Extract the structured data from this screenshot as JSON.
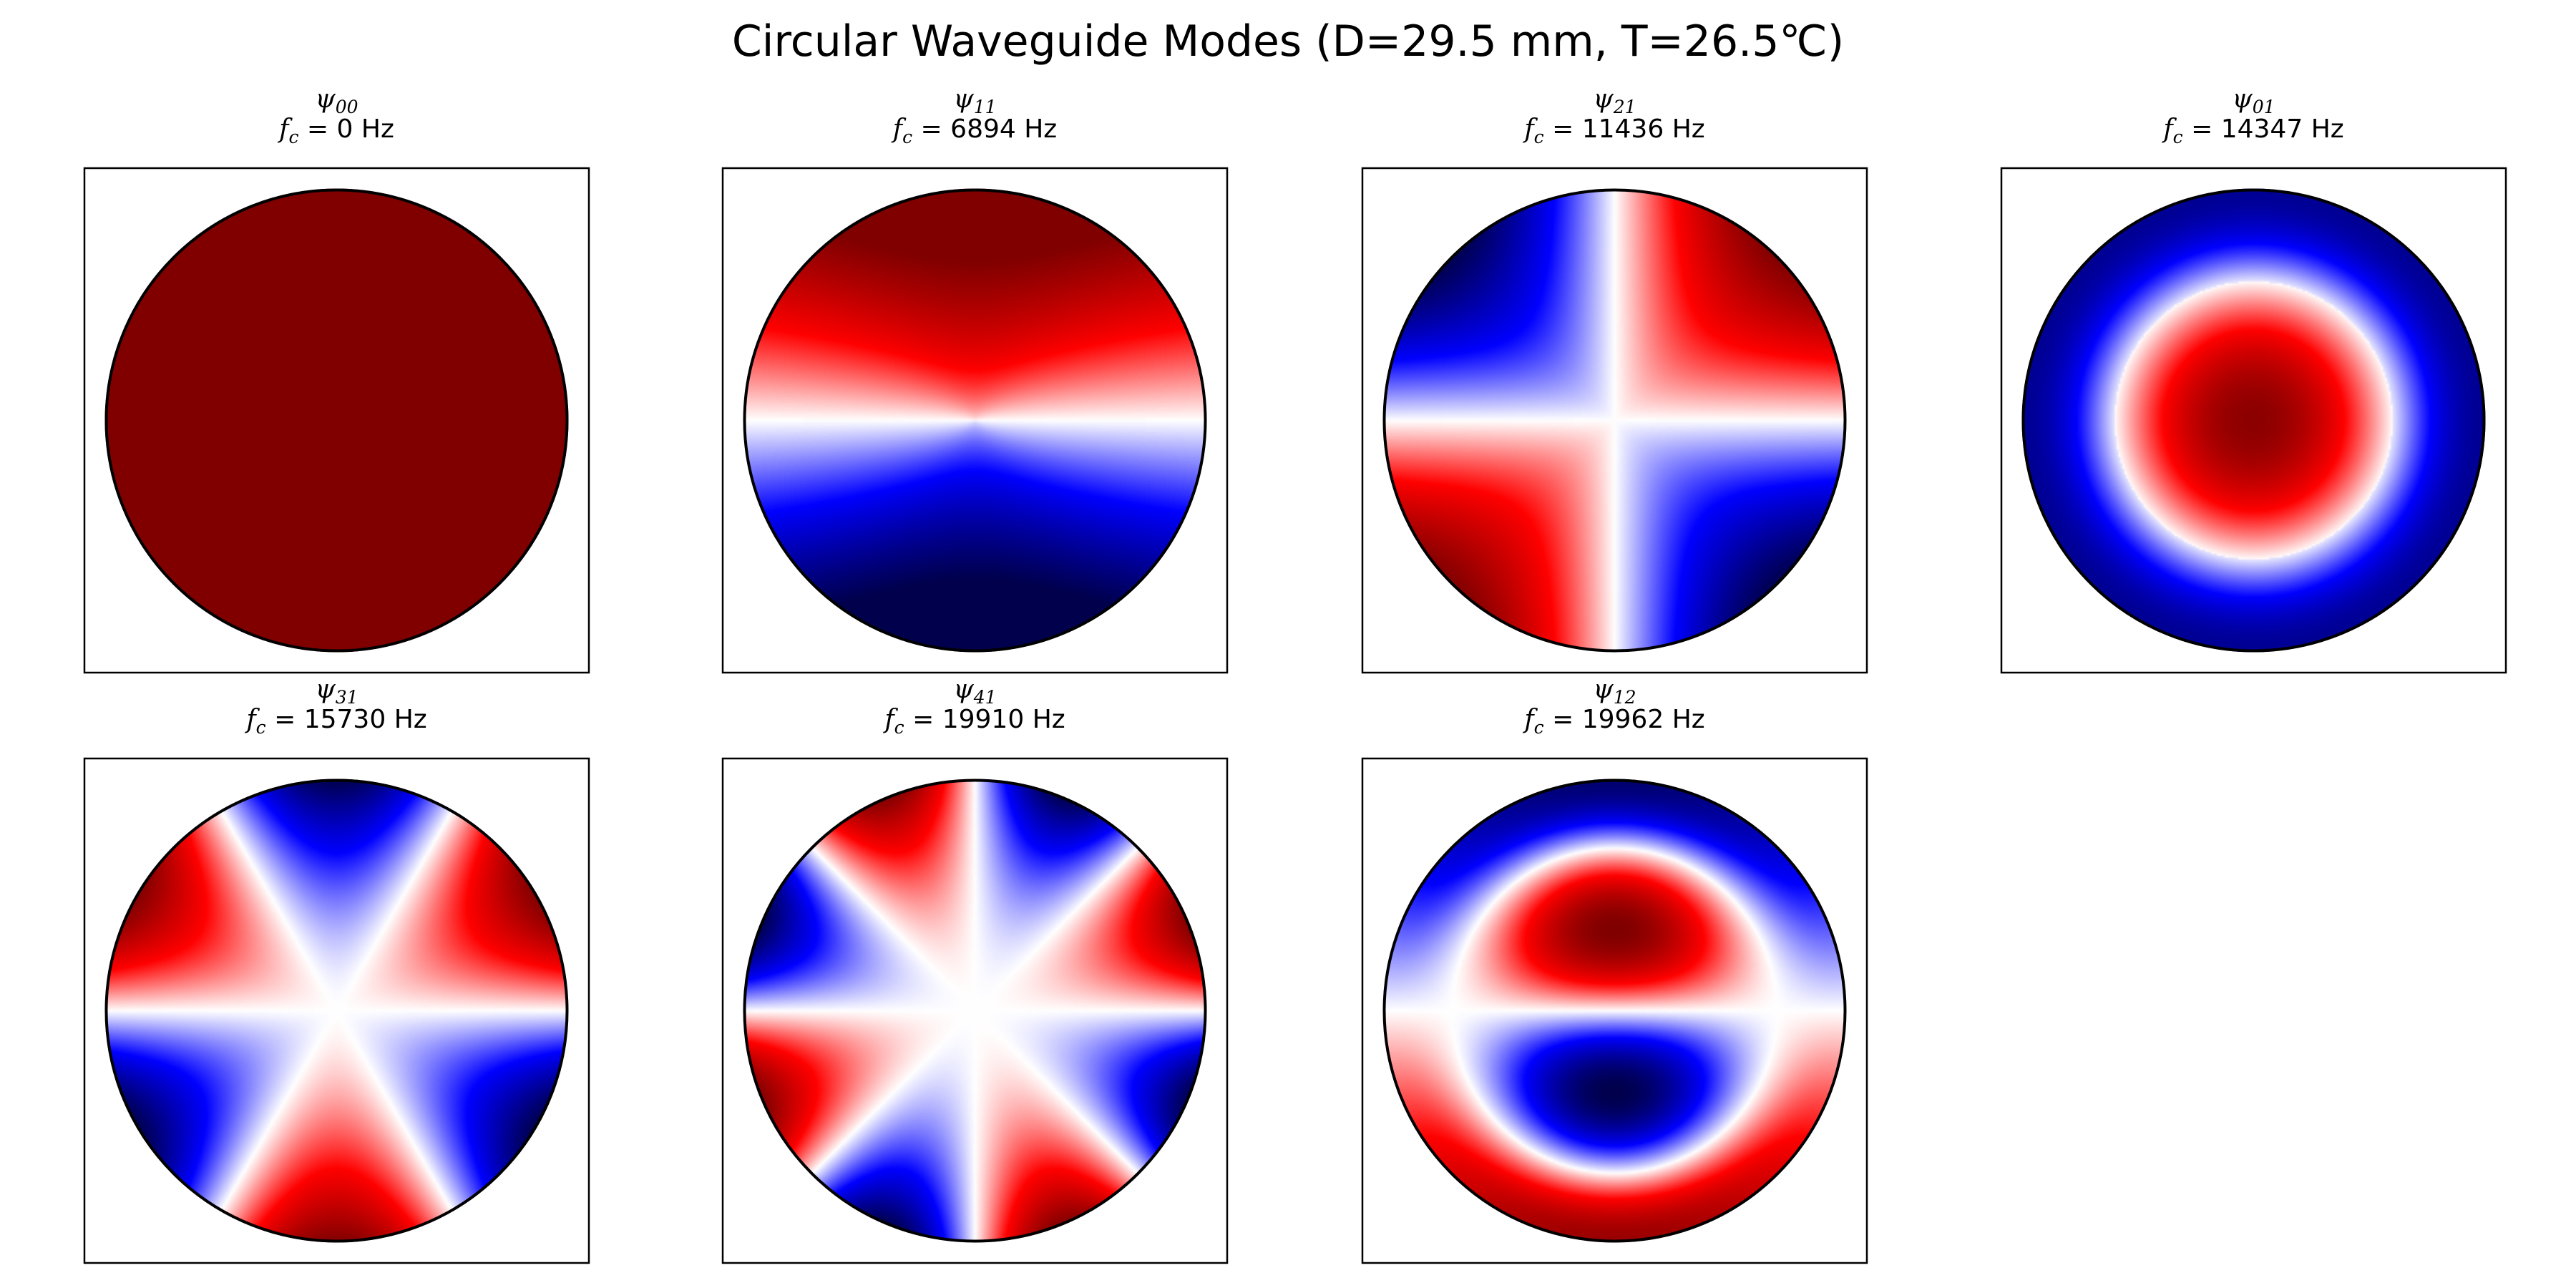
{
  "chart_data": {
    "type": "heatmap",
    "title": "Circular Waveguide Modes (D=29.5 mm, T=26.5℃)",
    "colormap": "seismic",
    "colors": {
      "negative": "#0000ff",
      "zero": "#ffffff",
      "positive": "#ff0000",
      "extreme_positive": "#800000"
    },
    "frequency_unit": "Hz",
    "layout": {
      "rows": 2,
      "cols": 4
    },
    "modes": [
      {
        "label": "ψ",
        "m": 0,
        "n": 0,
        "subscript": "00",
        "fc": 0,
        "fc_text": "0",
        "profile": "uniform"
      },
      {
        "label": "ψ",
        "m": 1,
        "n": 1,
        "subscript": "11",
        "fc": 6894,
        "fc_text": "6894",
        "profile": "angular"
      },
      {
        "label": "ψ",
        "m": 2,
        "n": 1,
        "subscript": "21",
        "fc": 11436,
        "fc_text": "11436",
        "profile": "angular"
      },
      {
        "label": "ψ",
        "m": 0,
        "n": 1,
        "subscript": "01",
        "fc": 14347,
        "fc_text": "14347",
        "profile": "radial"
      },
      {
        "label": "ψ",
        "m": 3,
        "n": 1,
        "subscript": "31",
        "fc": 15730,
        "fc_text": "15730",
        "profile": "angular"
      },
      {
        "label": "ψ",
        "m": 4,
        "n": 1,
        "subscript": "41",
        "fc": 19910,
        "fc_text": "19910",
        "profile": "angular"
      },
      {
        "label": "ψ",
        "m": 1,
        "n": 2,
        "subscript": "12",
        "fc": 19962,
        "fc_text": "19962",
        "profile": "angular-radial"
      }
    ]
  }
}
